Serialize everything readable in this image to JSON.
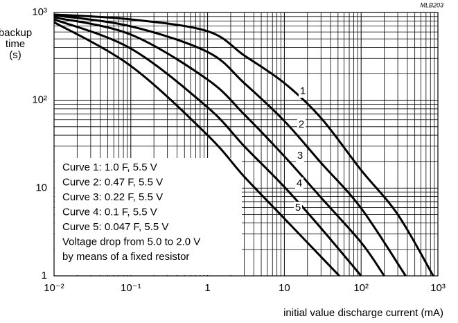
{
  "chart_data": {
    "type": "line",
    "code": "MLB203",
    "ylabel": [
      "backup",
      "time",
      "(s)"
    ],
    "xlabel": "initial value discharge current  (mA)",
    "log_x": true,
    "log_y": true,
    "grid": true,
    "minor_grid": true,
    "color": "#000000",
    "xlim": [
      0.01,
      1000
    ],
    "ylim": [
      1,
      1000
    ],
    "xticks": [
      {
        "value": 0.01,
        "label": "10⁻²"
      },
      {
        "value": 0.1,
        "label": "10⁻¹"
      },
      1,
      10,
      {
        "value": 100,
        "label": "10²"
      },
      {
        "value": 1000,
        "label": "10³"
      }
    ],
    "yticks": [
      1,
      10,
      {
        "value": 100,
        "label": "10²"
      },
      {
        "value": 1000,
        "label": "10³"
      }
    ],
    "series": [
      {
        "name": "1",
        "x": [
          0.01,
          0.1,
          1,
          3,
          10,
          30,
          100,
          300,
          870
        ],
        "values": [
          950,
          834,
          612,
          324,
          157,
          63,
          16,
          5,
          1
        ]
      },
      {
        "name": "2",
        "x": [
          0.01,
          0.1,
          1,
          3,
          10,
          30,
          100,
          380
        ],
        "values": [
          930,
          695,
          355,
          157,
          58,
          19.4,
          5.9,
          1
        ]
      },
      {
        "name": "3",
        "x": [
          0.01,
          0.1,
          1,
          3,
          10,
          30,
          100,
          200
        ],
        "values": [
          880,
          560,
          172,
          69,
          23,
          7.8,
          2.4,
          1
        ]
      },
      {
        "name": "4",
        "x": [
          0.01,
          0.1,
          1,
          3,
          10,
          30,
          100
        ],
        "values": [
          834,
          388,
          83,
          30,
          10.3,
          3.5,
          1
        ]
      },
      {
        "name": "5",
        "x": [
          0.01,
          0.1,
          1,
          3,
          10,
          52
        ],
        "values": [
          775,
          246,
          40,
          13.5,
          4.5,
          1
        ]
      }
    ],
    "legend_lines": [
      "Curve 1:  1.0 F, 5.5 V",
      "Curve 2:  0.47 F, 5.5 V",
      "Curve 3:  0.22 F, 5.5 V",
      "Curve 4:  0.1 F, 5.5 V",
      "Curve 5:  0.047 F, 5.5 V",
      "Voltage drop from 5.0 to 2.0 V",
      "by means of a fixed resistor"
    ]
  }
}
